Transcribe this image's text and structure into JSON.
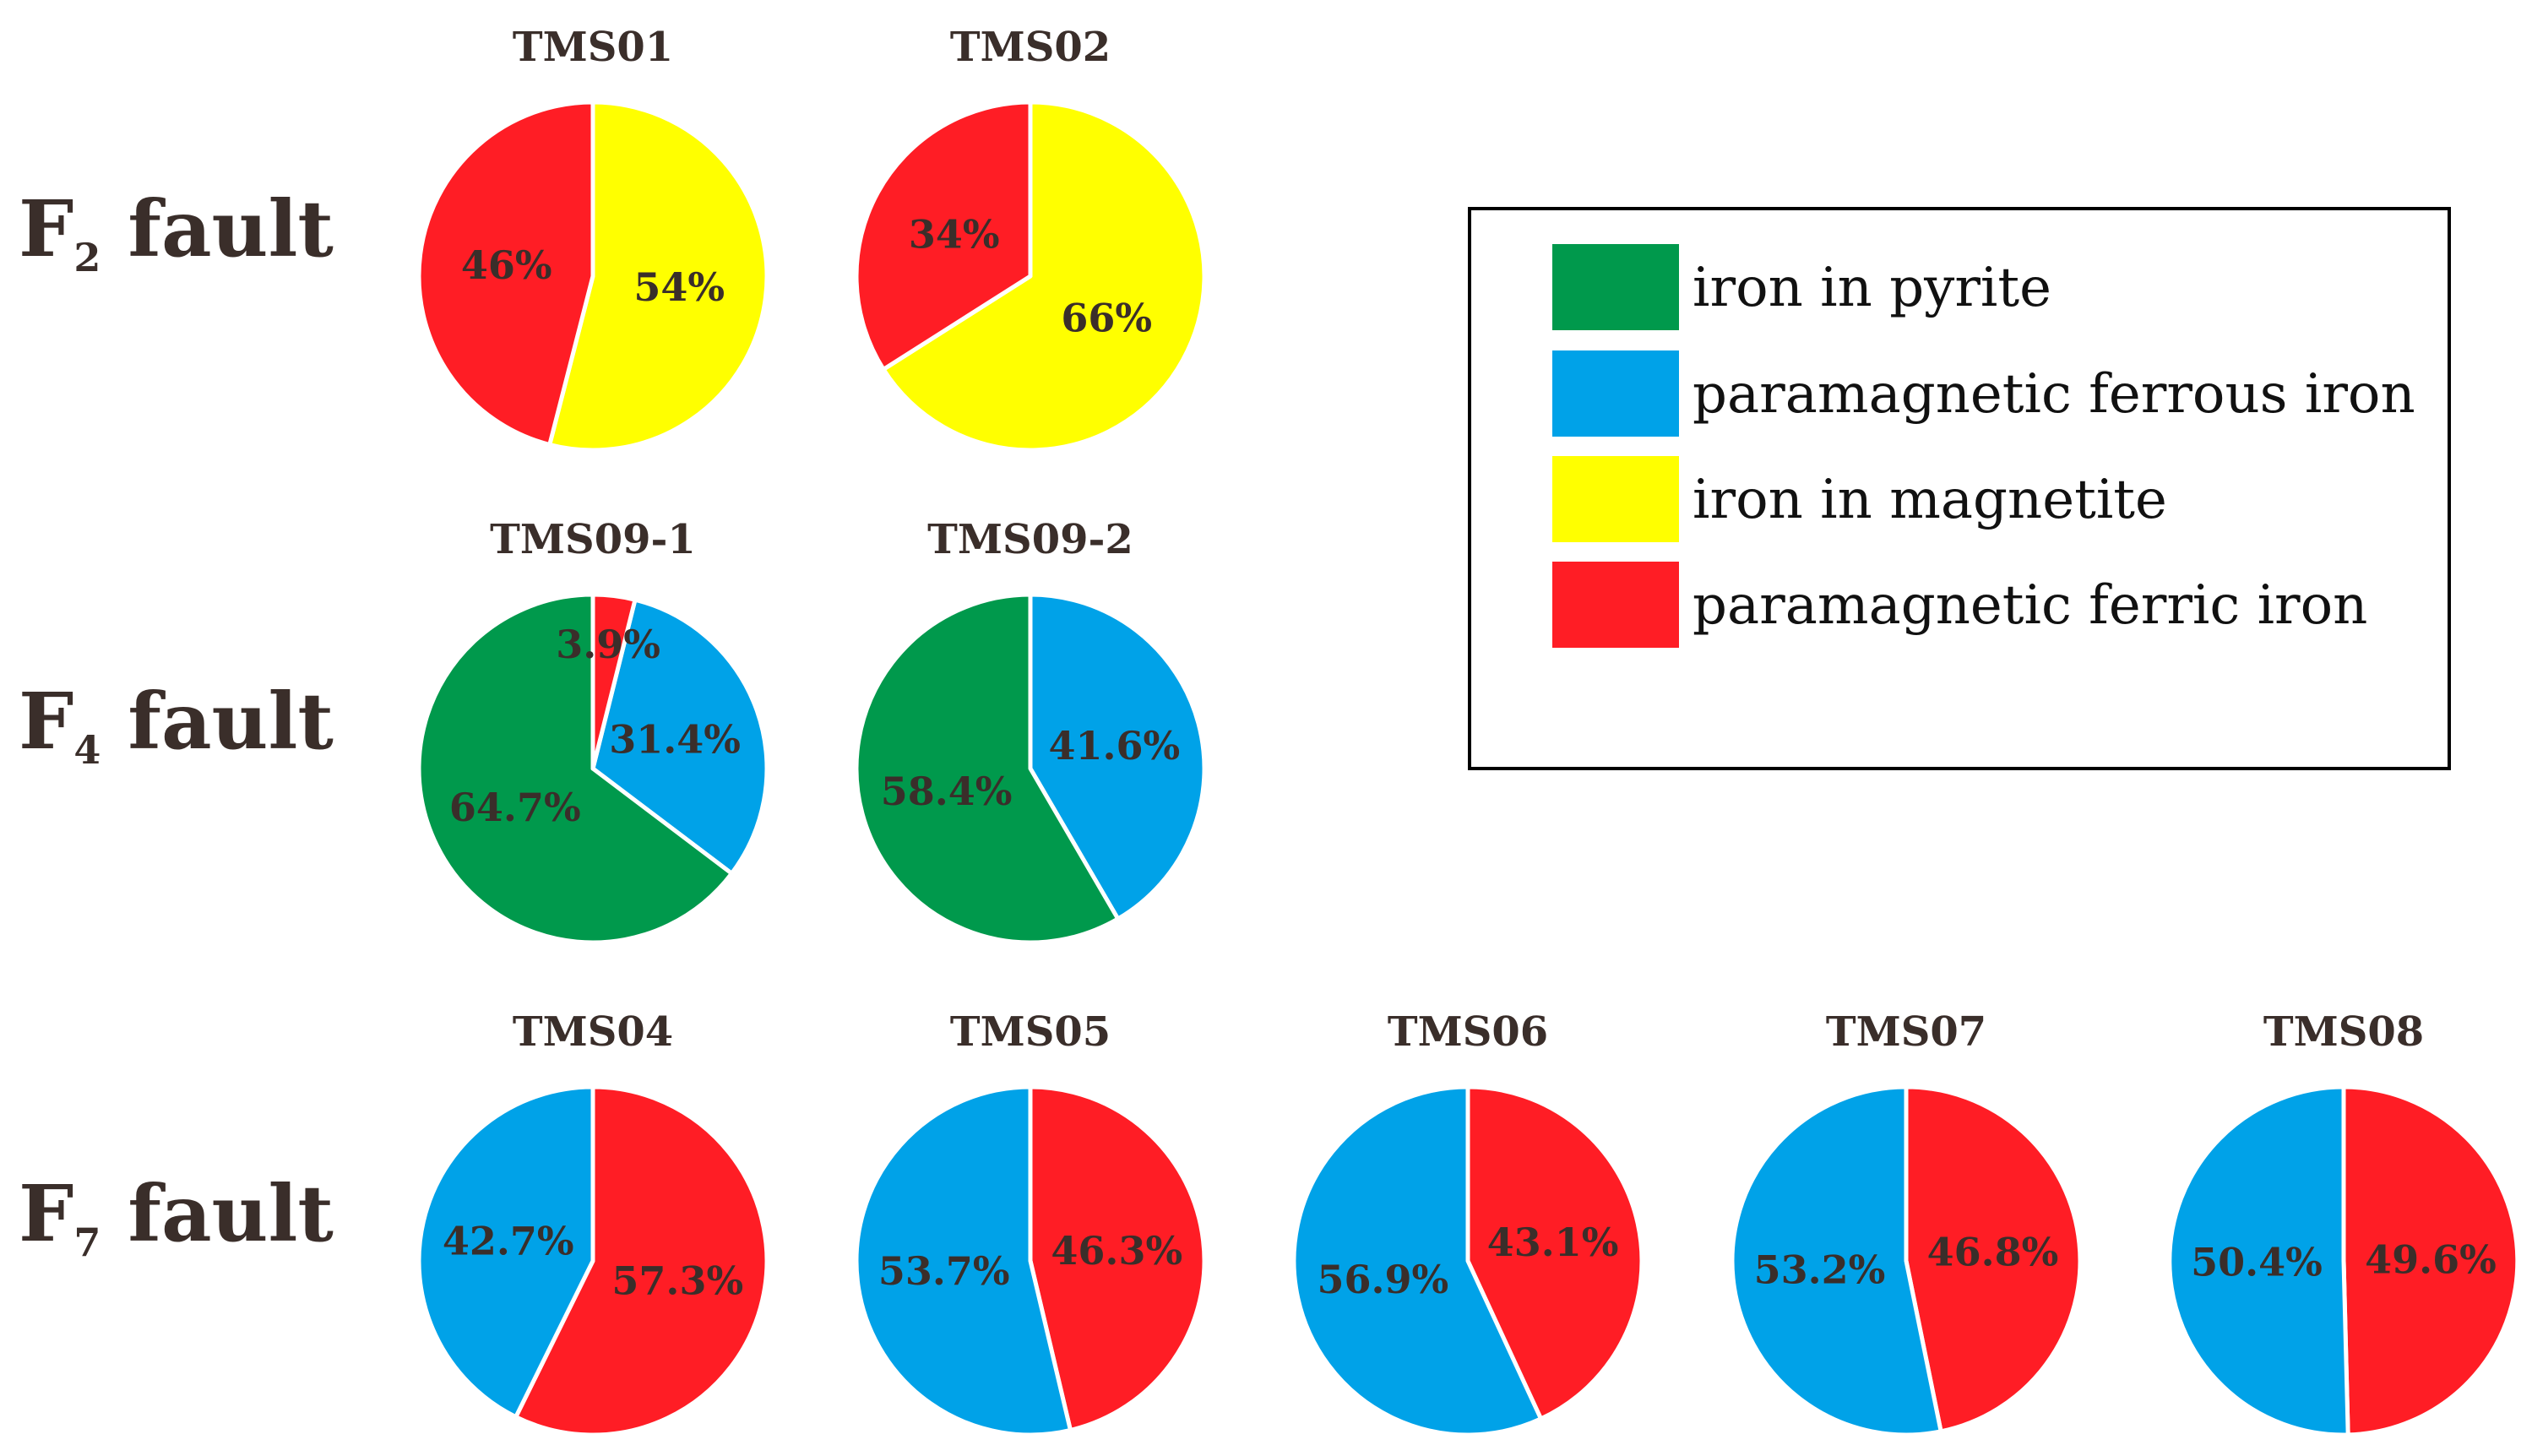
{
  "colors": {
    "iron_in_pyrite": "#00994c",
    "paramagnetic_ferrous_iron": "#00a2e8",
    "iron_in_magnetite": "#ffff00",
    "paramagnetic_ferric_iron": "#ff1d25",
    "label_text": "#3a2e2a"
  },
  "legend": {
    "items": [
      {
        "key": "iron_in_pyrite",
        "label": "iron in pyrite"
      },
      {
        "key": "paramagnetic_ferrous_iron",
        "label": "paramagnetic ferrous iron"
      },
      {
        "key": "iron_in_magnetite",
        "label": "iron in magnetite"
      },
      {
        "key": "paramagnetic_ferric_iron",
        "label": "paramagnetic ferric iron"
      }
    ]
  },
  "rows": [
    {
      "label_main": "F",
      "label_sub": "2",
      "label_rest": " fault"
    },
    {
      "label_main": "F",
      "label_sub": "4",
      "label_rest": " fault"
    },
    {
      "label_main": "F",
      "label_sub": "7",
      "label_rest": " fault"
    }
  ],
  "chart_data": [
    {
      "type": "pie",
      "title": "TMS01",
      "row": 0,
      "slices": [
        {
          "category": "iron_in_magnetite",
          "value": 54,
          "label": "54%"
        },
        {
          "category": "paramagnetic_ferric_iron",
          "value": 46,
          "label": "46%"
        }
      ]
    },
    {
      "type": "pie",
      "title": "TMS02",
      "row": 0,
      "slices": [
        {
          "category": "iron_in_magnetite",
          "value": 66,
          "label": "66%"
        },
        {
          "category": "paramagnetic_ferric_iron",
          "value": 34,
          "label": "34%"
        }
      ]
    },
    {
      "type": "pie",
      "title": "TMS09-1",
      "row": 1,
      "slices": [
        {
          "category": "paramagnetic_ferrous_iron",
          "value": 31.4,
          "label": "31.4%"
        },
        {
          "category": "iron_in_pyrite",
          "value": 64.7,
          "label": "64.7%"
        },
        {
          "category": "paramagnetic_ferric_iron",
          "value": 3.9,
          "label": "3.9%"
        }
      ]
    },
    {
      "type": "pie",
      "title": "TMS09-2",
      "row": 1,
      "slices": [
        {
          "category": "paramagnetic_ferrous_iron",
          "value": 41.6,
          "label": "41.6%"
        },
        {
          "category": "iron_in_pyrite",
          "value": 58.4,
          "label": "58.4%"
        }
      ]
    },
    {
      "type": "pie",
      "title": "TMS04",
      "row": 2,
      "slices": [
        {
          "category": "paramagnetic_ferric_iron",
          "value": 57.3,
          "label": "57.3%"
        },
        {
          "category": "paramagnetic_ferrous_iron",
          "value": 42.7,
          "label": "42.7%"
        }
      ]
    },
    {
      "type": "pie",
      "title": "TMS05",
      "row": 2,
      "slices": [
        {
          "category": "paramagnetic_ferric_iron",
          "value": 46.3,
          "label": "46.3%"
        },
        {
          "category": "paramagnetic_ferrous_iron",
          "value": 53.7,
          "label": "53.7%"
        }
      ]
    },
    {
      "type": "pie",
      "title": "TMS06",
      "row": 2,
      "slices": [
        {
          "category": "paramagnetic_ferric_iron",
          "value": 43.1,
          "label": "43.1%"
        },
        {
          "category": "paramagnetic_ferrous_iron",
          "value": 56.9,
          "label": "56.9%"
        }
      ]
    },
    {
      "type": "pie",
      "title": "TMS07",
      "row": 2,
      "slices": [
        {
          "category": "paramagnetic_ferric_iron",
          "value": 46.8,
          "label": "46.8%"
        },
        {
          "category": "paramagnetic_ferrous_iron",
          "value": 53.2,
          "label": "53.2%"
        }
      ]
    },
    {
      "type": "pie",
      "title": "TMS08",
      "row": 2,
      "slices": [
        {
          "category": "paramagnetic_ferric_iron",
          "value": 49.6,
          "label": "49.6%"
        },
        {
          "category": "paramagnetic_ferrous_iron",
          "value": 50.4,
          "label": "50.4%"
        }
      ]
    }
  ]
}
